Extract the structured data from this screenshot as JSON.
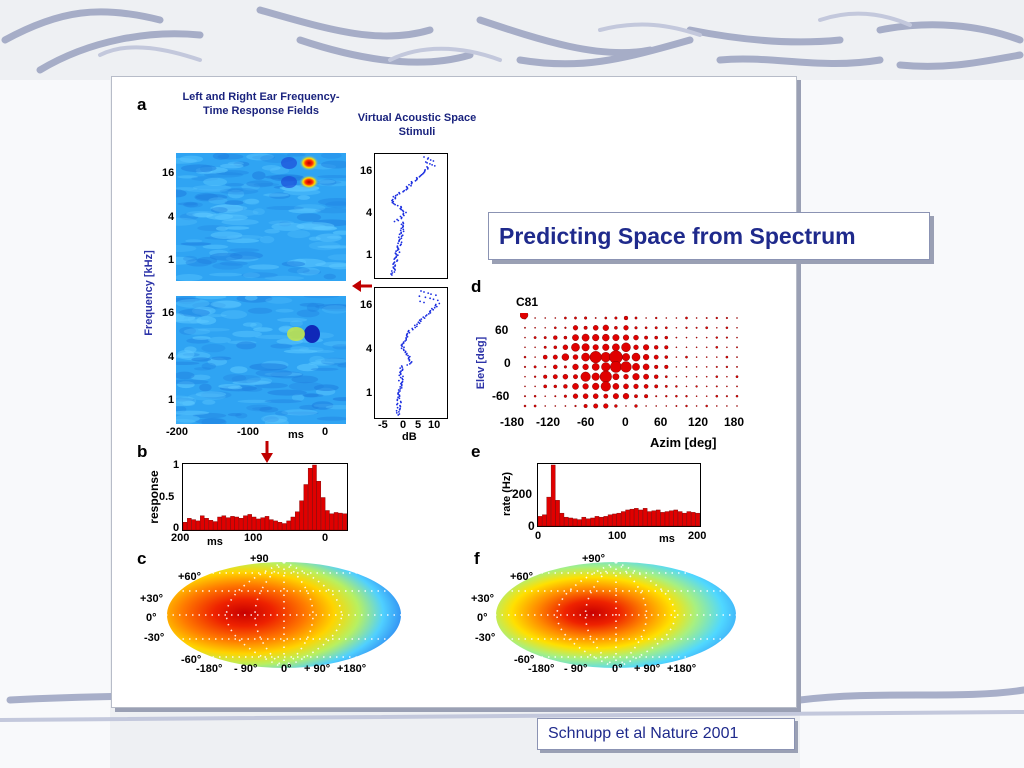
{
  "slide": {
    "title": "Predicting Space from Spectrum",
    "citation": "Schnupp et al Nature 2001",
    "colors": {
      "accent": "#1f2a8c",
      "data_red": "#e00000",
      "stim_blue": "#1b2ee0"
    }
  },
  "figure": {
    "panel_a": {
      "letter": "a",
      "header_frf": "Left and Right Ear Frequency-Time Response Fields",
      "header_vas": "Virtual Acoustic Space Stimuli",
      "ylabel": "Frequency [kHz]",
      "freq_ticks": [
        "16",
        "4",
        "1"
      ],
      "time_ticks": [
        "-200",
        "-100",
        "ms",
        "0"
      ],
      "db_ticks": [
        "-5",
        "0",
        "5",
        "10"
      ],
      "db_label": "dB"
    },
    "panel_b": {
      "letter": "b",
      "ylabel": "response",
      "yticks": [
        "1",
        "0.5",
        "0"
      ],
      "xticks": [
        "200",
        "ms",
        "100",
        "0"
      ]
    },
    "panel_c": {
      "letter": "c",
      "elev_ticks": [
        "+90",
        "+60°",
        "+30°",
        "0°",
        "-30°",
        "-60°"
      ],
      "azim_ticks": [
        "-180°",
        "- 90°",
        "0°",
        "+ 90°",
        "+180°"
      ]
    },
    "panel_d": {
      "letter": "d",
      "unit": "C81",
      "xlabel": "Azim [deg]",
      "ylabel": "Elev [deg]",
      "xticks": [
        "-180",
        "-120",
        "-60",
        "0",
        "60",
        "120",
        "180"
      ],
      "yticks": [
        "60",
        "0",
        "-60"
      ]
    },
    "panel_e": {
      "letter": "e",
      "ylabel": "rate (Hz)",
      "yticks": [
        "200",
        "0"
      ],
      "xticks": [
        "0",
        "100",
        "ms",
        "200"
      ]
    },
    "panel_f": {
      "letter": "f",
      "elev_ticks": [
        "+90°",
        "+60°",
        "+30°",
        "0°",
        "-30°",
        "-60°"
      ],
      "azim_ticks": [
        "-180°",
        "- 90°",
        "0°",
        "+ 90°",
        "+180°"
      ]
    }
  },
  "chart_data": [
    {
      "type": "bar",
      "id": "b",
      "xlim": [
        200,
        0
      ],
      "ylim": [
        0,
        1
      ],
      "values": [
        0.12,
        0.18,
        0.16,
        0.14,
        0.22,
        0.18,
        0.15,
        0.13,
        0.2,
        0.22,
        0.19,
        0.21,
        0.2,
        0.18,
        0.22,
        0.24,
        0.2,
        0.17,
        0.19,
        0.21,
        0.16,
        0.14,
        0.12,
        0.1,
        0.14,
        0.2,
        0.28,
        0.45,
        0.7,
        0.95,
        1.0,
        0.75,
        0.5,
        0.3,
        0.25,
        0.27,
        0.26,
        0.25
      ]
    },
    {
      "type": "bar",
      "id": "e",
      "xlim": [
        0,
        200
      ],
      "ylim": [
        0,
        380
      ],
      "values": [
        60,
        70,
        180,
        380,
        160,
        80,
        55,
        50,
        45,
        40,
        55,
        45,
        50,
        60,
        55,
        60,
        70,
        75,
        80,
        90,
        100,
        105,
        110,
        100,
        110,
        90,
        95,
        100,
        85,
        90,
        95,
        100,
        90,
        80,
        90,
        85,
        80
      ]
    }
  ]
}
